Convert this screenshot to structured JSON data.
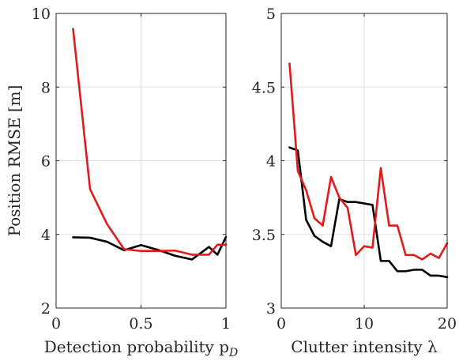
{
  "colors": {
    "series_black": "#000000",
    "series_red": "#e31a1c",
    "grid": "#dfdfdf",
    "axis": "#262626"
  },
  "chart_data": [
    {
      "type": "line",
      "xlabel": "Detection probability p",
      "xlabel_subscript": "D",
      "ylabel": "Position RMSE [m]",
      "xlim": [
        0,
        1
      ],
      "ylim": [
        2,
        10
      ],
      "xticks": [
        0,
        0.5,
        1
      ],
      "xtick_labels": [
        "0",
        "0.5",
        "1"
      ],
      "yticks": [
        2,
        4,
        6,
        8,
        10
      ],
      "ytick_labels": [
        "2",
        "4",
        "6",
        "8",
        "10"
      ],
      "grid": true,
      "series": [
        {
          "color": "#000000",
          "x": [
            0.1,
            0.2,
            0.3,
            0.4,
            0.5,
            0.6,
            0.7,
            0.8,
            0.9,
            0.95,
            1.0
          ],
          "y": [
            3.92,
            3.91,
            3.8,
            3.57,
            3.71,
            3.58,
            3.42,
            3.32,
            3.66,
            3.45,
            3.93
          ]
        },
        {
          "color": "#e31a1c",
          "x": [
            0.1,
            0.2,
            0.3,
            0.4,
            0.5,
            0.6,
            0.7,
            0.8,
            0.9,
            0.95,
            1.0
          ],
          "y": [
            9.58,
            5.23,
            4.28,
            3.6,
            3.55,
            3.55,
            3.56,
            3.45,
            3.45,
            3.72,
            3.72
          ]
        }
      ]
    },
    {
      "type": "line",
      "xlabel": "Clutter intensity λ",
      "ylabel": "",
      "xlim": [
        0,
        20
      ],
      "ylim": [
        3,
        5
      ],
      "xticks": [
        0,
        10,
        20
      ],
      "xtick_labels": [
        "0",
        "10",
        "20"
      ],
      "yticks": [
        3,
        3.5,
        4,
        4.5,
        5
      ],
      "ytick_labels": [
        "3",
        "3.5",
        "4",
        "4.5",
        "5"
      ],
      "grid": true,
      "series": [
        {
          "color": "#000000",
          "x": [
            1,
            2,
            3,
            4,
            5,
            6,
            7,
            8,
            9,
            10,
            11,
            12,
            13,
            14,
            15,
            16,
            17,
            18,
            19,
            20
          ],
          "y": [
            4.09,
            4.07,
            3.6,
            3.49,
            3.45,
            3.42,
            3.74,
            3.72,
            3.72,
            3.71,
            3.7,
            3.32,
            3.32,
            3.25,
            3.25,
            3.26,
            3.26,
            3.22,
            3.22,
            3.21
          ]
        },
        {
          "color": "#e31a1c",
          "x": [
            1,
            2,
            3,
            4,
            5,
            6,
            7,
            8,
            9,
            10,
            11,
            12,
            13,
            14,
            15,
            16,
            17,
            18,
            19,
            20
          ],
          "y": [
            4.66,
            3.93,
            3.8,
            3.61,
            3.56,
            3.89,
            3.75,
            3.68,
            3.36,
            3.42,
            3.41,
            3.95,
            3.56,
            3.56,
            3.36,
            3.36,
            3.33,
            3.37,
            3.34,
            3.44
          ]
        }
      ]
    }
  ]
}
